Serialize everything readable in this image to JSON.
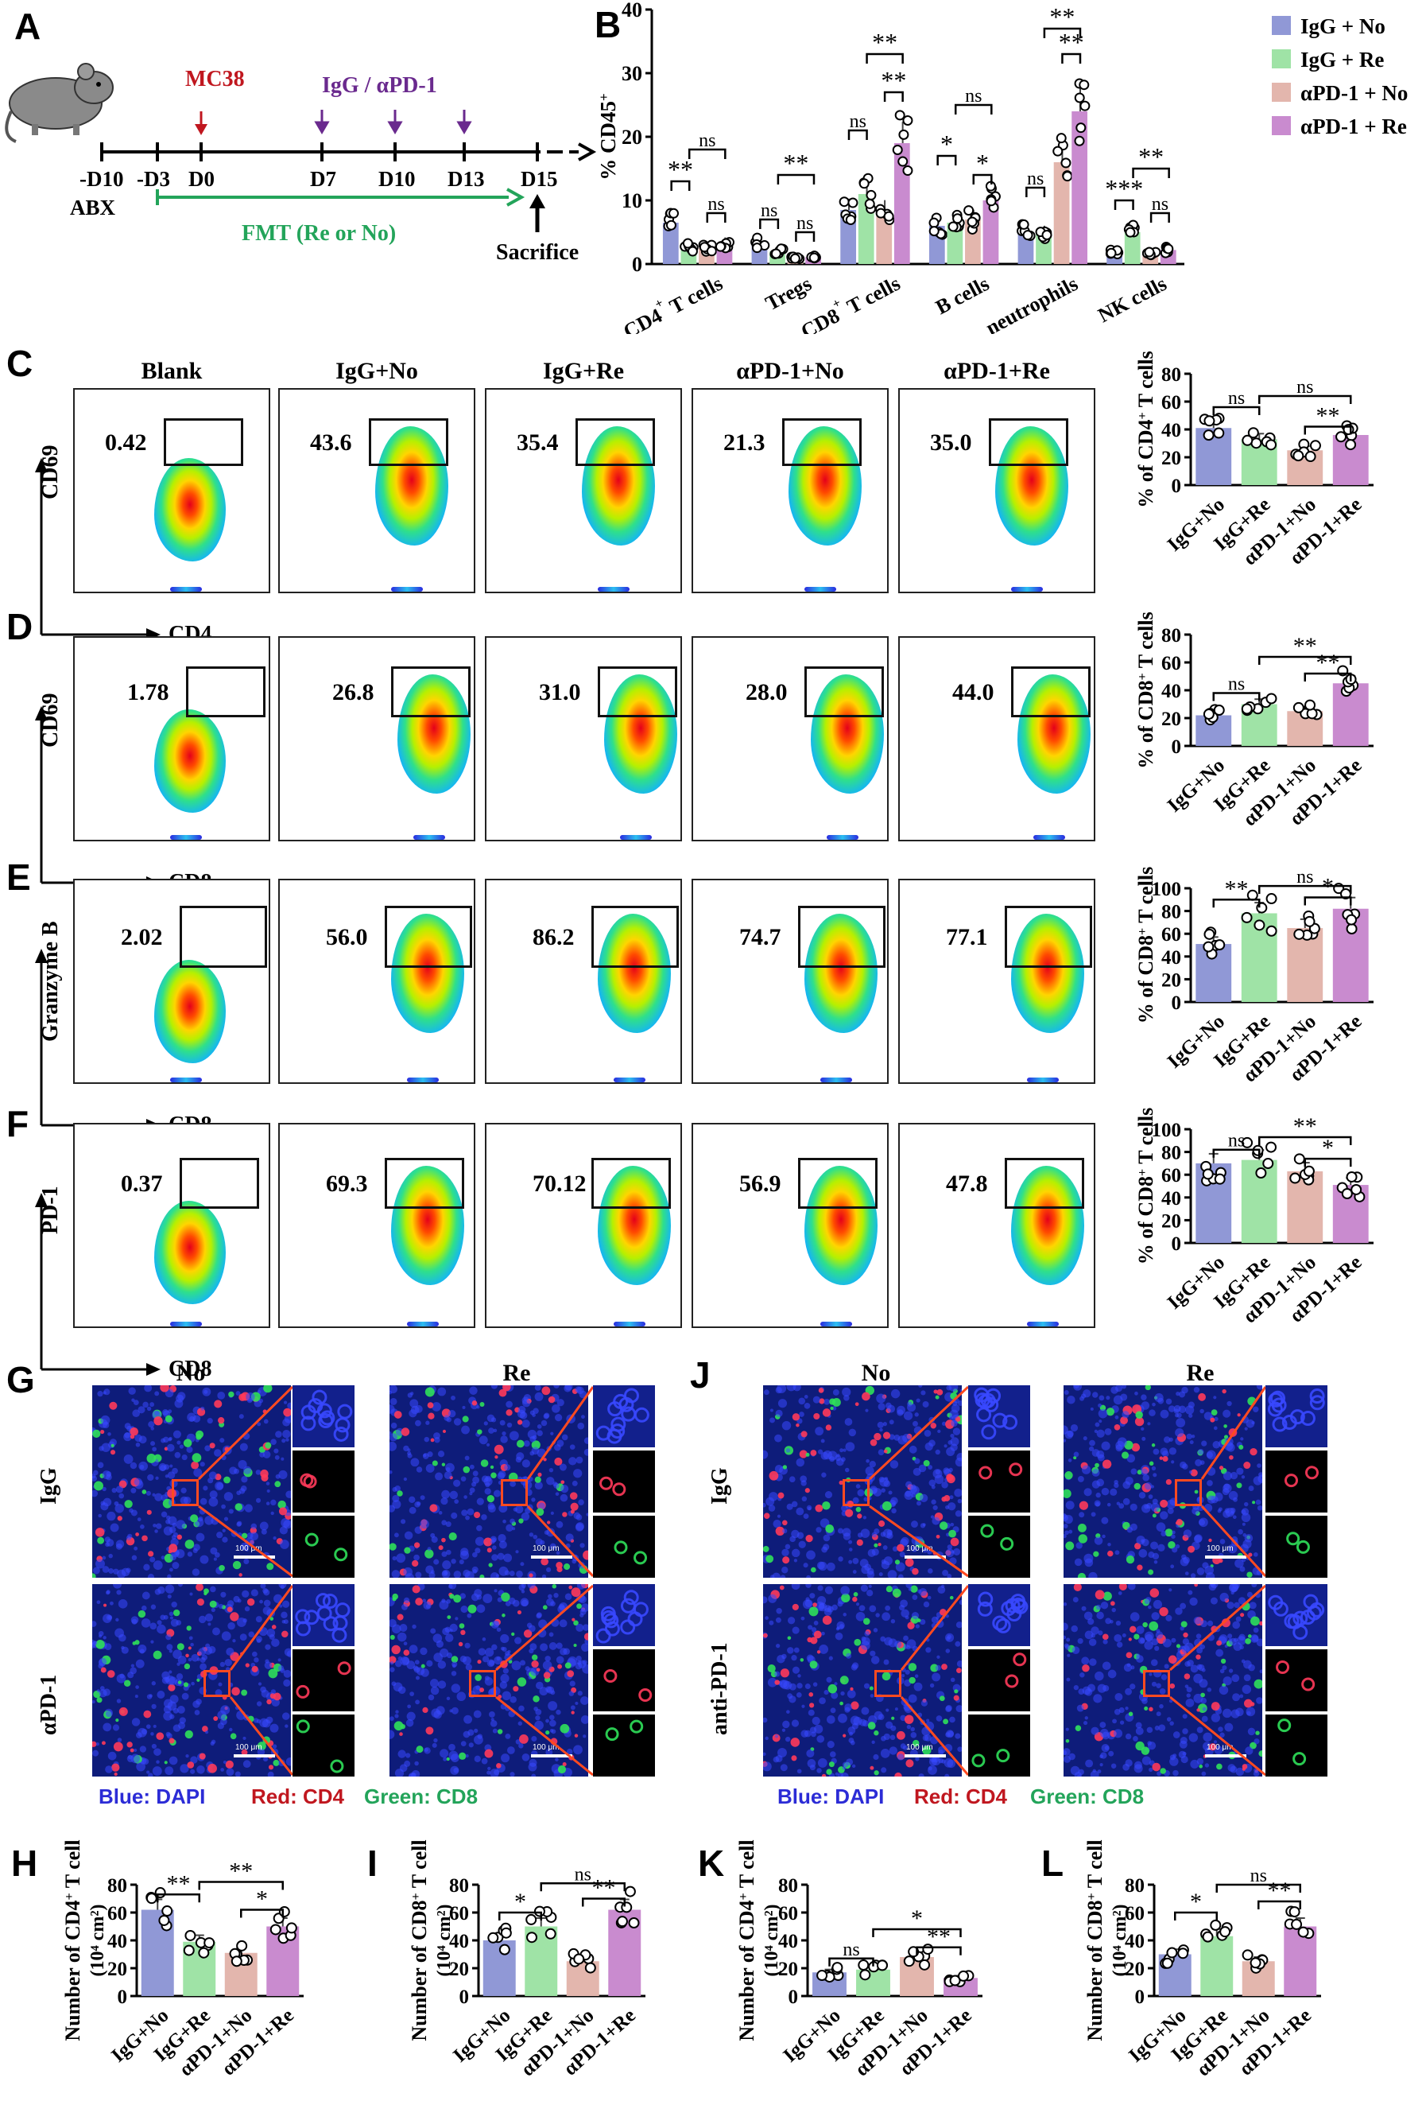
{
  "panels": {
    "A": "A",
    "B": "B",
    "C": "C",
    "D": "D",
    "E": "E",
    "F": "F",
    "G": "G",
    "H": "H",
    "I": "I",
    "J": "J",
    "K": "K",
    "L": "L"
  },
  "timeline": {
    "days": [
      "-D10",
      "-D3",
      "D0",
      "D7",
      "D10",
      "D13",
      "D15"
    ],
    "abx": "ABX",
    "mc38": "MC38",
    "treatment": "IgG / αPD-1",
    "fmt": "FMT (Re or No)",
    "sacrifice": "Sacrifice",
    "colors": {
      "mc38": "#c0171f",
      "treatment": "#6a2a8e",
      "fmt": "#23a45a"
    }
  },
  "flow": {
    "columns": [
      "Blank",
      "IgG+No",
      "IgG+Re",
      "αPD-1+No",
      "αPD-1+Re"
    ],
    "rows": [
      {
        "y_axis": "CD69",
        "x_axis": "CD4",
        "values": [
          "0.42",
          "43.6",
          "35.4",
          "21.3",
          "35.0"
        ]
      },
      {
        "y_axis": "CD69",
        "x_axis": "CD8",
        "values": [
          "1.78",
          "26.8",
          "31.0",
          "28.0",
          "44.0"
        ]
      },
      {
        "y_axis": "Granzyme B",
        "x_axis": "CD8",
        "values": [
          "2.02",
          "56.0",
          "86.2",
          "74.7",
          "77.1"
        ]
      },
      {
        "y_axis": "PD-1",
        "x_axis": "CD8",
        "values": [
          "0.37",
          "69.3",
          "70.12",
          "56.9",
          "47.8"
        ]
      }
    ]
  },
  "micro": {
    "G": {
      "cols": [
        "No",
        "Re"
      ],
      "rows": [
        "IgG",
        "αPD-1"
      ]
    },
    "J": {
      "cols": [
        "No",
        "Re"
      ],
      "rows": [
        "IgG",
        "anti-PD-1"
      ]
    },
    "scale": "100 μm",
    "legend": {
      "blue": "Blue: DAPI",
      "red": "Red: CD4",
      "green": "Green: CD8"
    }
  },
  "colors": {
    "IgG+No": "#9098d6",
    "IgG+Re": "#9fe3a6",
    "αPD-1+No": "#e3b6ad",
    "αPD-1+Re": "#c98bcf",
    "dapi": "#2c2cd6",
    "cd4": "#c0171f",
    "cd8": "#23a45a"
  },
  "chart_data": [
    {
      "id": "B",
      "type": "bar",
      "ylabel": "% CD45+",
      "ylim": [
        0,
        40
      ],
      "yticks": [
        0,
        10,
        20,
        30,
        40
      ],
      "categories": [
        "CD4+ T cells",
        "Tregs",
        "CD8+ T cells",
        "B cells",
        "neutrophils",
        "NK cells"
      ],
      "series": [
        {
          "name": "IgG + No",
          "values": [
            6.5,
            3.3,
            8.5,
            6,
            5,
            1.8
          ]
        },
        {
          "name": "IgG + Re",
          "values": [
            2.6,
            2,
            11,
            6.5,
            4.8,
            5
          ]
        },
        {
          "name": "αPD-1 + No",
          "values": [
            2.5,
            1,
            8.3,
            7,
            16,
            1.8
          ]
        },
        {
          "name": "αPD-1 + Re",
          "values": [
            3.2,
            1.1,
            19,
            10,
            24,
            2.2
          ]
        }
      ],
      "sig": [
        {
          "a": 0,
          "b": 1,
          "y": 13,
          "text": "**"
        },
        {
          "a": 1,
          "b": 3,
          "y": 18,
          "text": "ns"
        },
        {
          "a": 2,
          "b": 3,
          "y": 8,
          "text": "ns"
        },
        {
          "a": 0,
          "b": 1,
          "y": 7,
          "text": "ns"
        },
        {
          "a": 1,
          "b": 3,
          "y": 14,
          "text": "**"
        },
        {
          "a": 2,
          "b": 3,
          "y": 5,
          "text": "ns"
        },
        {
          "a": 0,
          "b": 1,
          "y": 21,
          "text": "ns"
        },
        {
          "a": 1,
          "b": 3,
          "y": 33,
          "text": "**"
        },
        {
          "a": 2,
          "b": 3,
          "y": 27,
          "text": "**"
        },
        {
          "a": 0,
          "b": 1,
          "y": 17,
          "text": "*"
        },
        {
          "a": 1,
          "b": 3,
          "y": 25,
          "text": "ns"
        },
        {
          "a": 2,
          "b": 3,
          "y": 14,
          "text": "*"
        },
        {
          "a": 0,
          "b": 1,
          "y": 12,
          "text": "ns"
        },
        {
          "a": 1,
          "b": 3,
          "y": 37,
          "text": "**"
        },
        {
          "a": 2,
          "b": 3,
          "y": 33,
          "text": "**"
        },
        {
          "a": 0,
          "b": 1,
          "y": 10,
          "text": "***"
        },
        {
          "a": 1,
          "b": 3,
          "y": 15,
          "text": "**"
        },
        {
          "a": 2,
          "b": 3,
          "y": 8,
          "text": "ns"
        }
      ]
    },
    {
      "id": "C",
      "type": "bar",
      "ylabel": "% of CD4+ T cells",
      "ylim": [
        0,
        80
      ],
      "yticks": [
        0,
        20,
        40,
        60,
        80
      ],
      "categories": [
        "IgG+No",
        "IgG+Re",
        "αPD-1+No",
        "αPD-1+Re"
      ],
      "values": [
        41,
        33,
        25,
        36
      ],
      "sig": [
        {
          "a": 0,
          "b": 1,
          "y": 56,
          "text": "ns"
        },
        {
          "a": 1,
          "b": 3,
          "y": 64,
          "text": "ns"
        },
        {
          "a": 2,
          "b": 3,
          "y": 42,
          "text": "**"
        }
      ]
    },
    {
      "id": "D",
      "type": "bar",
      "ylabel": "% of CD8+ T cells",
      "ylim": [
        0,
        80
      ],
      "yticks": [
        0,
        20,
        40,
        60,
        80
      ],
      "categories": [
        "IgG+No",
        "IgG+Re",
        "αPD-1+No",
        "αPD-1+Re"
      ],
      "values": [
        22,
        30,
        25,
        45
      ],
      "sig": [
        {
          "a": 0,
          "b": 1,
          "y": 38,
          "text": "ns"
        },
        {
          "a": 1,
          "b": 3,
          "y": 64,
          "text": "**"
        },
        {
          "a": 2,
          "b": 3,
          "y": 52,
          "text": "**"
        }
      ]
    },
    {
      "id": "E",
      "type": "bar",
      "ylabel": "% of CD8+ T cells",
      "ylim": [
        0,
        100
      ],
      "yticks": [
        0,
        20,
        40,
        60,
        80,
        100
      ],
      "categories": [
        "IgG+No",
        "IgG+Re",
        "αPD-1+No",
        "αPD-1+Re"
      ],
      "values": [
        51,
        78,
        65,
        82
      ],
      "sig": [
        {
          "a": 0,
          "b": 1,
          "y": 90,
          "text": "**"
        },
        {
          "a": 1,
          "b": 3,
          "y": 102,
          "text": "ns"
        },
        {
          "a": 2,
          "b": 3,
          "y": 92,
          "text": "*"
        }
      ]
    },
    {
      "id": "F",
      "type": "bar",
      "ylabel": "% of CD8+ T cells",
      "ylim": [
        0,
        100
      ],
      "yticks": [
        0,
        20,
        40,
        60,
        80,
        100
      ],
      "categories": [
        "IgG+No",
        "IgG+Re",
        "αPD-1+No",
        "αPD-1+Re"
      ],
      "values": [
        70,
        73,
        63,
        51
      ],
      "sig": [
        {
          "a": 0,
          "b": 1,
          "y": 82,
          "text": "ns"
        },
        {
          "a": 1,
          "b": 3,
          "y": 93,
          "text": "**"
        },
        {
          "a": 2,
          "b": 3,
          "y": 74,
          "text": "*"
        }
      ]
    },
    {
      "id": "H",
      "type": "bar",
      "ylabel": "Number of CD4+ T cell (10⁴ cm²)",
      "ylim": [
        0,
        80
      ],
      "yticks": [
        0,
        20,
        40,
        60,
        80
      ],
      "categories": [
        "IgG+No",
        "IgG+Re",
        "αPD-1+No",
        "αPD-1+Re"
      ],
      "values": [
        62,
        39,
        31,
        50
      ],
      "sig": [
        {
          "a": 0,
          "b": 1,
          "y": 73,
          "text": "**"
        },
        {
          "a": 1,
          "b": 3,
          "y": 82,
          "text": "**"
        },
        {
          "a": 2,
          "b": 3,
          "y": 62,
          "text": "*"
        }
      ]
    },
    {
      "id": "I",
      "type": "bar",
      "ylabel": "Number of CD8+ T cell (10⁴ cm²)",
      "ylim": [
        0,
        80
      ],
      "yticks": [
        0,
        20,
        40,
        60,
        80
      ],
      "categories": [
        "IgG+No",
        "IgG+Re",
        "αPD-1+No",
        "αPD-1+Re"
      ],
      "values": [
        40,
        50,
        25,
        62
      ],
      "sig": [
        {
          "a": 0,
          "b": 1,
          "y": 60,
          "text": "*"
        },
        {
          "a": 1,
          "b": 3,
          "y": 81,
          "text": "ns"
        },
        {
          "a": 2,
          "b": 3,
          "y": 70,
          "text": "**"
        }
      ]
    },
    {
      "id": "K",
      "type": "bar",
      "ylabel": "Number of CD4+ T cell (10⁴ cm²)",
      "ylim": [
        0,
        80
      ],
      "yticks": [
        0,
        20,
        40,
        60,
        80
      ],
      "categories": [
        "IgG+No",
        "IgG+Re",
        "αPD-1+No",
        "αPD-1+Re"
      ],
      "values": [
        17,
        19,
        28,
        13
      ],
      "sig": [
        {
          "a": 0,
          "b": 1,
          "y": 27,
          "text": "ns"
        },
        {
          "a": 1,
          "b": 3,
          "y": 48,
          "text": "*"
        },
        {
          "a": 2,
          "b": 3,
          "y": 35,
          "text": "**"
        }
      ]
    },
    {
      "id": "L",
      "type": "bar",
      "ylabel": "Number of CD8+ T cell (10⁴ cm²)",
      "ylim": [
        0,
        80
      ],
      "yticks": [
        0,
        20,
        40,
        60,
        80
      ],
      "categories": [
        "IgG+No",
        "IgG+Re",
        "αPD-1+No",
        "αPD-1+Re"
      ],
      "values": [
        30,
        43,
        25,
        50
      ],
      "sig": [
        {
          "a": 0,
          "b": 1,
          "y": 60,
          "text": "*"
        },
        {
          "a": 1,
          "b": 3,
          "y": 80,
          "text": "ns"
        },
        {
          "a": 2,
          "b": 3,
          "y": 68,
          "text": "**"
        }
      ]
    }
  ]
}
